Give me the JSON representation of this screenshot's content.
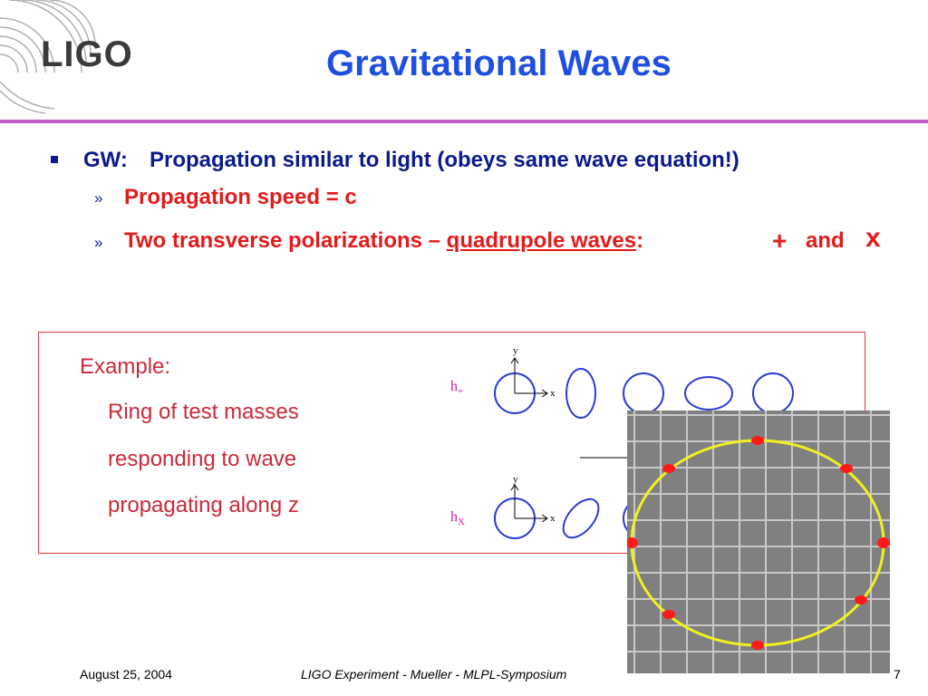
{
  "logo": {
    "text": "LIGO"
  },
  "slide": {
    "title": "Gravitational Waves",
    "bullet": {
      "lead": "GW:",
      "text": "Propagation similar to light (obeys same wave equation!)",
      "subs": [
        {
          "marker": "»",
          "text": "Propagation speed = c"
        },
        {
          "marker": "»",
          "prefix": "Two transverse polarizations – ",
          "link": "quadrupole waves",
          "colon": ":",
          "plus": "+",
          "and": "and",
          "x": "x"
        }
      ]
    }
  },
  "example": {
    "lines": [
      "Example:",
      "Ring of test masses",
      "responding to wave",
      "propagating along z"
    ]
  },
  "diagram": {
    "h_plus": "h",
    "h_plus_sub": "+",
    "h_cross": "h",
    "h_cross_sub": "X",
    "axis_y": "y",
    "axis_x": "x"
  },
  "colors": {
    "title": "#1f4fe0",
    "navy": "#0b1a8c",
    "red": "#e21b1b",
    "rule": "#c05cc6",
    "ring": "#2a3cd8",
    "grid_bg": "#808080",
    "ellipse": "#f0f020",
    "mass": "#ff1a1a"
  },
  "footer": {
    "date": "August 25, 2004",
    "center": "LIGO Experiment - Mueller - MLPL-Symposium",
    "page": "7"
  }
}
